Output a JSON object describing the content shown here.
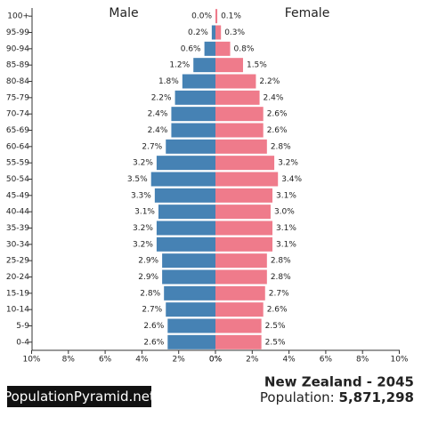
{
  "chart_data": {
    "type": "pyramid",
    "categories": [
      "100+",
      "95-99",
      "90-94",
      "85-89",
      "80-84",
      "75-79",
      "70-74",
      "65-69",
      "60-64",
      "55-59",
      "50-54",
      "45-49",
      "40-44",
      "35-39",
      "30-34",
      "25-29",
      "20-24",
      "15-19",
      "10-14",
      "5-9",
      "0-4"
    ],
    "series": [
      {
        "name": "Male",
        "color": "#4682b4",
        "side": "left",
        "values": [
          0.0,
          0.2,
          0.6,
          1.2,
          1.8,
          2.2,
          2.4,
          2.4,
          2.7,
          3.2,
          3.5,
          3.3,
          3.1,
          3.2,
          3.2,
          2.9,
          2.9,
          2.8,
          2.7,
          2.6,
          2.6
        ],
        "value_labels": [
          "0.0%",
          "0.2%",
          "0.6%",
          "1.2%",
          "1.8%",
          "2.2%",
          "2.4%",
          "2.4%",
          "2.7%",
          "3.2%",
          "3.5%",
          "3.3%",
          "3.1%",
          "3.2%",
          "3.2%",
          "2.9%",
          "2.9%",
          "2.8%",
          "2.7%",
          "2.6%",
          "2.6%"
        ]
      },
      {
        "name": "Female",
        "color": "#ef7b8b",
        "side": "right",
        "values": [
          0.1,
          0.3,
          0.8,
          1.5,
          2.2,
          2.4,
          2.6,
          2.6,
          2.8,
          3.2,
          3.4,
          3.1,
          3.0,
          3.1,
          3.1,
          2.8,
          2.8,
          2.7,
          2.6,
          2.5,
          2.5
        ],
        "value_labels": [
          "0.1%",
          "0.3%",
          "0.8%",
          "1.5%",
          "2.2%",
          "2.4%",
          "2.6%",
          "2.6%",
          "2.8%",
          "3.2%",
          "3.4%",
          "3.1%",
          "3.0%",
          "3.1%",
          "3.1%",
          "2.8%",
          "2.8%",
          "2.7%",
          "2.6%",
          "2.5%",
          "2.5%"
        ]
      }
    ],
    "xlim": [
      0,
      10
    ],
    "xticks": [
      {
        "value": 0,
        "label": "0%"
      },
      {
        "value": 2,
        "label": "2%"
      },
      {
        "value": 4,
        "label": "4%"
      },
      {
        "value": 6,
        "label": "6%"
      },
      {
        "value": 8,
        "label": "8%"
      },
      {
        "value": 10,
        "label": "10%"
      }
    ],
    "grid": false,
    "brand": "PopulationPyramid.net",
    "title": "New Zealand - 2045",
    "population_label": "Population:",
    "population": "5,871,298"
  }
}
